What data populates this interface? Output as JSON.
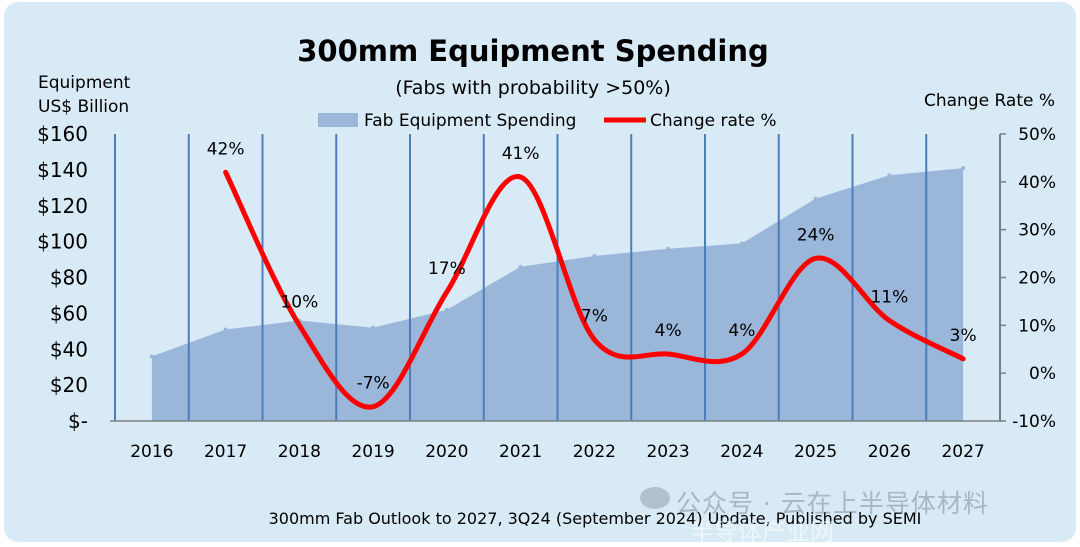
{
  "chart_data": {
    "type": "area+line",
    "title": "300mm Equipment Spending",
    "subtitle": "(Fabs with probability >50%)",
    "ylabel_left": [
      "Equipment",
      "US$ Billion"
    ],
    "ylabel_right": "Change Rate %",
    "legend": {
      "area_label": "Fab Equipment Spending",
      "line_label": "Change rate %",
      "placement": "top-center"
    },
    "categories": [
      "2016",
      "2017",
      "2018",
      "2019",
      "2020",
      "2021",
      "2022",
      "2023",
      "2024",
      "2025",
      "2026",
      "2027"
    ],
    "series": [
      {
        "name": "Fab Equipment Spending",
        "axis": "left",
        "kind": "area",
        "color": "#9ab6d9",
        "values": [
          36,
          51,
          56,
          52,
          62,
          86,
          92,
          96,
          99,
          124,
          137,
          141
        ]
      },
      {
        "name": "Change rate %",
        "axis": "right",
        "kind": "line",
        "color": "#ff0000",
        "values": [
          null,
          42,
          10,
          -7,
          17,
          41,
          7,
          4,
          4,
          24,
          11,
          3
        ],
        "labels": [
          "",
          "42%",
          "10%",
          "-7%",
          "17%",
          "41%",
          "7%",
          "4%",
          "4%",
          "24%",
          "11%",
          "3%"
        ]
      }
    ],
    "left_axis": {
      "min": 0,
      "max": 160,
      "step": 20,
      "tick_labels": [
        "$-",
        "$20",
        "$40",
        "$60",
        "$80",
        "$100",
        "$120",
        "$140",
        "$160"
      ]
    },
    "right_axis": {
      "min": -10,
      "max": 50,
      "step": 10,
      "tick_labels": [
        "-10%",
        "0%",
        "10%",
        "20%",
        "30%",
        "40%",
        "50%"
      ]
    },
    "footnote": "300mm Fab Outlook to 2027, 3Q24 (September 2024) Update, Published by SEMI",
    "gridline_color": "#4a7ebb"
  },
  "watermark": {
    "line1": "公众号 · 云在上半导体材料",
    "line2": "半导体产业网"
  }
}
